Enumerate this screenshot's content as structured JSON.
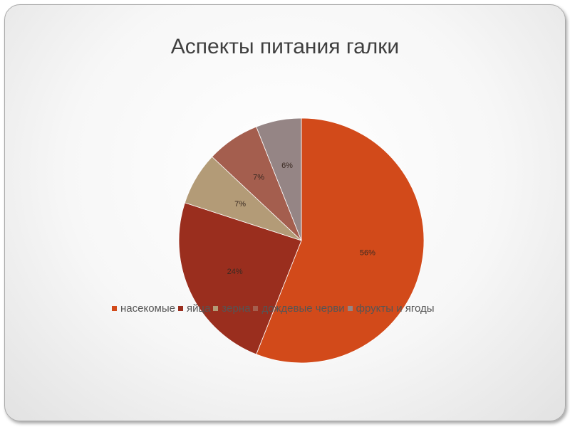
{
  "chart_data": {
    "type": "pie",
    "title": "Аспекты питания галки",
    "categories": [
      "насекомые",
      "яйца",
      "зерна",
      "дождевые черви",
      "фрукты и ягоды"
    ],
    "values": [
      56,
      24,
      7,
      7,
      6
    ],
    "data_labels": [
      "56%",
      "24%",
      "7%",
      "7%",
      "6%"
    ],
    "colors": [
      "#d24a1a",
      "#9a2e1e",
      "#b39b77",
      "#a45e4e",
      "#958585"
    ],
    "start_angle_deg": 0,
    "direction": "clockwise",
    "legend_position": "bottom",
    "grid": false
  }
}
